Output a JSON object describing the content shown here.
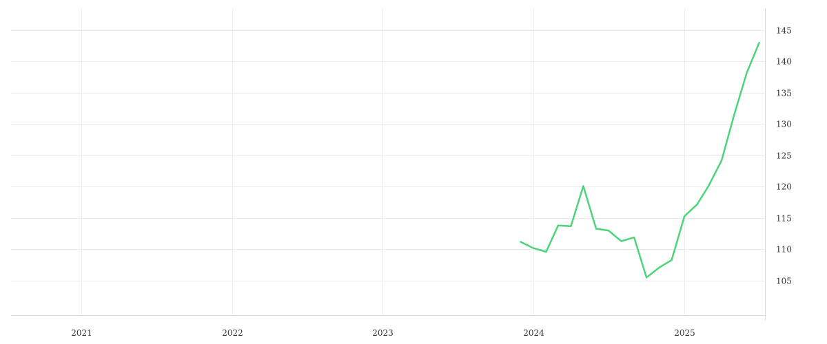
{
  "chart_data": {
    "type": "line",
    "title": "",
    "xlabel": "",
    "ylabel": "",
    "grid": true,
    "legend": "none",
    "x_axis": {
      "type": "date",
      "range": [
        "2020-07-15",
        "2025-07-15"
      ],
      "ticks": [
        {
          "value": "2021-01-01",
          "label": "2021"
        },
        {
          "value": "2022-01-01",
          "label": "2022"
        },
        {
          "value": "2023-01-01",
          "label": "2023"
        },
        {
          "value": "2024-01-01",
          "label": "2024"
        },
        {
          "value": "2025-01-01",
          "label": "2025"
        }
      ]
    },
    "y_axis": {
      "position": "right",
      "range": [
        99.5,
        148.5
      ],
      "ticks": [
        105,
        110,
        115,
        120,
        125,
        130,
        135,
        140,
        145
      ]
    },
    "series": [
      {
        "color": "#4cd47b",
        "x": [
          "2023-12-01",
          "2024-01-01",
          "2024-02-01",
          "2024-03-01",
          "2024-04-01",
          "2024-05-01",
          "2024-06-01",
          "2024-07-01",
          "2024-08-01",
          "2024-09-01",
          "2024-10-01",
          "2024-11-01",
          "2024-12-01",
          "2025-01-01",
          "2025-02-01",
          "2025-03-01",
          "2025-04-01",
          "2025-05-01",
          "2025-06-01",
          "2025-07-01"
        ],
        "y": [
          111.2,
          110.2,
          109.6,
          113.8,
          113.7,
          120.1,
          113.3,
          113.0,
          111.3,
          111.9,
          105.5,
          107.1,
          108.3,
          115.3,
          117.2,
          120.2,
          124.2,
          131.4,
          138.2,
          143.0
        ]
      }
    ]
  }
}
